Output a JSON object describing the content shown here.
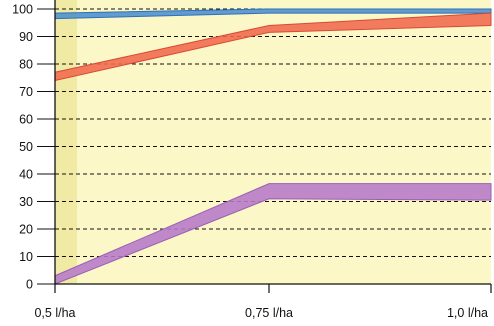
{
  "chart_data": {
    "type": "area",
    "title": "",
    "xlabel": "",
    "ylabel": "",
    "categories": [
      "0,5 l/ha",
      "0,75 l/ha",
      "1,0 l/ha"
    ],
    "ylim": [
      0,
      100
    ],
    "yticks": [
      0,
      10,
      20,
      30,
      40,
      50,
      60,
      70,
      80,
      90,
      100
    ],
    "grid": true,
    "legend": "none",
    "series": [
      {
        "low": [
          96.5,
          98.5,
          98.5
        ],
        "high": [
          98.5,
          100,
          100
        ],
        "color": "#4a8fd0",
        "edge": "#2f6fb8"
      },
      {
        "low": [
          74,
          91.5,
          94
        ],
        "high": [
          77,
          94,
          98.5
        ],
        "color": "#f06a4e",
        "edge": "#d94a33"
      },
      {
        "low": [
          0,
          31,
          30.5
        ],
        "high": [
          3,
          36.5,
          36.5
        ],
        "color": "#b67ac9",
        "edge": "#9a5fb4"
      }
    ],
    "colors": {
      "plot_bg": "#fbf7c6",
      "left_band": "#f1eaa4",
      "grid": "#111111",
      "axis": "#111111"
    }
  }
}
